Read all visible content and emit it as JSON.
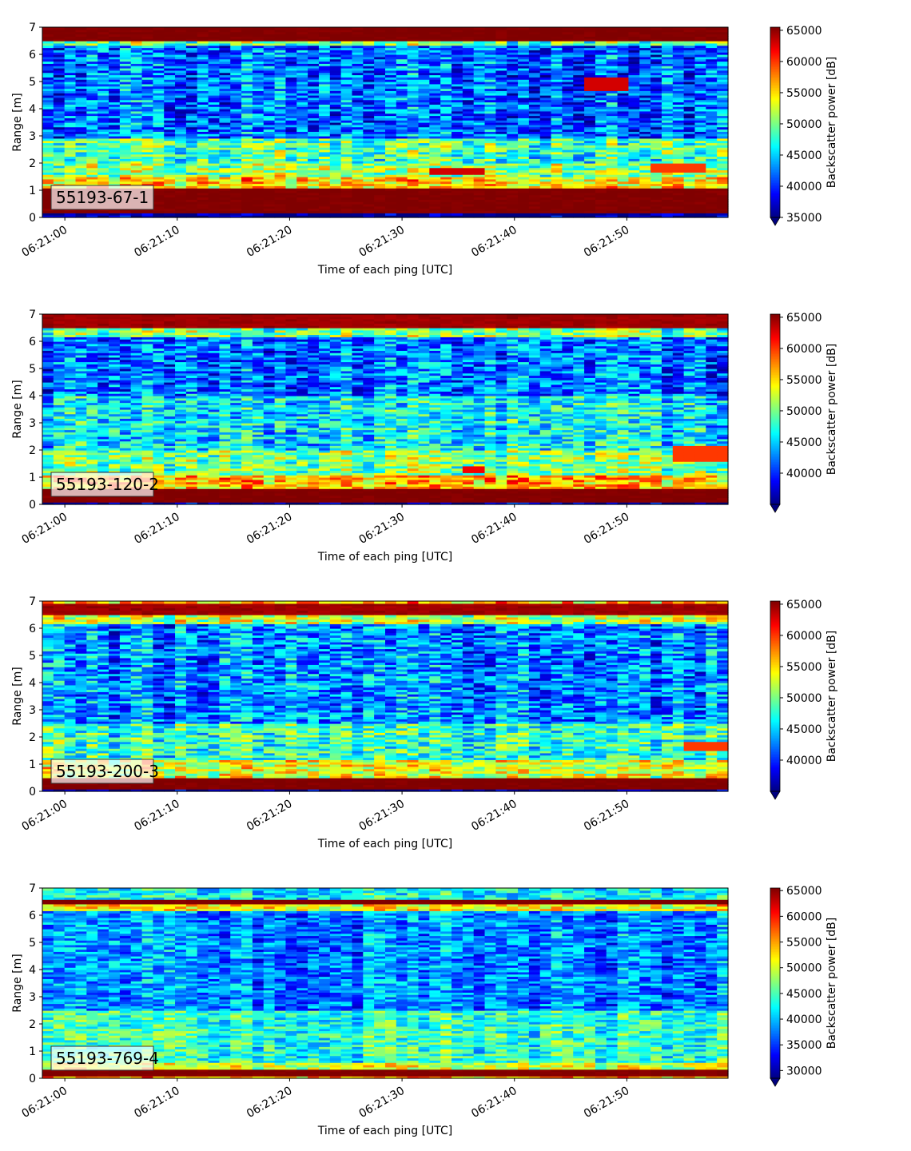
{
  "chart_data": [
    {
      "type": "heatmap",
      "panel_label": "55193-67-1",
      "xlabel": "Time of each ping [UTC]",
      "ylabel": "Range [m]",
      "x_ticks": [
        "06:21:00",
        "06:21:10",
        "06:21:20",
        "06:21:30",
        "06:21:40",
        "06:21:50"
      ],
      "y_ticks": [
        0,
        1,
        2,
        3,
        4,
        5,
        6,
        7
      ],
      "ylim": [
        0,
        7
      ],
      "time_range_s": [
        -2,
        59
      ],
      "colorbar_label": "Backscatter power [dB]",
      "colorbar_ticks": [
        35000,
        40000,
        45000,
        50000,
        55000,
        60000,
        65000
      ],
      "colorbar_range": [
        35000,
        65500
      ],
      "colormap": "jet",
      "colorbar_extend": "min",
      "bands": [
        {
          "range_m": [
            0.2,
            1.1
          ],
          "level": 65000
        },
        {
          "range_m": [
            1.1,
            1.5
          ],
          "level": 55000
        },
        {
          "range_m": [
            1.5,
            2.0
          ],
          "level": 51000
        },
        {
          "range_m": [
            2.0,
            2.4
          ],
          "level": 48000
        },
        {
          "range_m": [
            2.4,
            2.9
          ],
          "level": 49000
        },
        {
          "range_m": [
            2.9,
            6.3
          ],
          "level": 42000
        },
        {
          "range_m": [
            6.3,
            6.5
          ],
          "level": 50000
        },
        {
          "range_m": [
            6.5,
            7.0
          ],
          "level": 65000
        }
      ],
      "features": [
        {
          "time_s": [
            32,
            37
          ],
          "range_m": [
            1.6,
            1.8
          ],
          "level": 63000
        },
        {
          "time_s": [
            46,
            50
          ],
          "range_m": [
            4.7,
            5.2
          ],
          "level": 63000
        },
        {
          "time_s": [
            52,
            57
          ],
          "range_m": [
            1.7,
            2.0
          ],
          "level": 60000
        }
      ]
    },
    {
      "type": "heatmap",
      "panel_label": "55193-120-2",
      "xlabel": "Time of each ping [UTC]",
      "ylabel": "Range [m]",
      "x_ticks": [
        "06:21:00",
        "06:21:10",
        "06:21:20",
        "06:21:30",
        "06:21:40",
        "06:21:50"
      ],
      "y_ticks": [
        0,
        1,
        2,
        3,
        4,
        5,
        6,
        7
      ],
      "ylim": [
        0,
        7
      ],
      "time_range_s": [
        -2,
        59
      ],
      "colorbar_label": "Backscatter power [dB]",
      "colorbar_ticks": [
        40000,
        45000,
        50000,
        55000,
        60000,
        65000
      ],
      "colorbar_range": [
        35000,
        65500
      ],
      "colormap": "jet",
      "colorbar_extend": "min",
      "bands": [
        {
          "range_m": [
            0.1,
            0.6
          ],
          "level": 65000
        },
        {
          "range_m": [
            0.6,
            1.1
          ],
          "level": 56000
        },
        {
          "range_m": [
            1.1,
            2.0
          ],
          "level": 50000
        },
        {
          "range_m": [
            2.0,
            4.0
          ],
          "level": 46000
        },
        {
          "range_m": [
            4.0,
            6.2
          ],
          "level": 42000
        },
        {
          "range_m": [
            6.2,
            6.5
          ],
          "level": 50000
        },
        {
          "range_m": [
            6.5,
            7.0
          ],
          "level": 64000
        }
      ],
      "features": [
        {
          "time_s": [
            35,
            37
          ],
          "range_m": [
            1.2,
            1.4
          ],
          "level": 62000
        },
        {
          "time_s": [
            54,
            59
          ],
          "range_m": [
            1.6,
            2.2
          ],
          "level": 60000
        }
      ]
    },
    {
      "type": "heatmap",
      "panel_label": "55193-200-3",
      "xlabel": "Time of each ping [UTC]",
      "ylabel": "Range [m]",
      "x_ticks": [
        "06:21:00",
        "06:21:10",
        "06:21:20",
        "06:21:30",
        "06:21:40",
        "06:21:50"
      ],
      "y_ticks": [
        0,
        1,
        2,
        3,
        4,
        5,
        6,
        7
      ],
      "ylim": [
        0,
        7
      ],
      "time_range_s": [
        -2,
        59
      ],
      "colorbar_label": "Backscatter power [dB]",
      "colorbar_ticks": [
        40000,
        45000,
        50000,
        55000,
        60000,
        65000
      ],
      "colorbar_range": [
        35000,
        65500
      ],
      "colormap": "jet",
      "colorbar_extend": "min",
      "bands": [
        {
          "range_m": [
            0.1,
            0.5
          ],
          "level": 65000
        },
        {
          "range_m": [
            0.5,
            1.2
          ],
          "level": 53000
        },
        {
          "range_m": [
            1.2,
            2.5
          ],
          "level": 48000
        },
        {
          "range_m": [
            2.5,
            6.2
          ],
          "level": 43000
        },
        {
          "range_m": [
            6.2,
            6.5
          ],
          "level": 52000
        },
        {
          "range_m": [
            6.5,
            6.9
          ],
          "level": 64000
        },
        {
          "range_m": [
            6.9,
            7.0
          ],
          "level": 56000
        }
      ],
      "features": [
        {
          "time_s": [
            55,
            59
          ],
          "range_m": [
            1.5,
            1.8
          ],
          "level": 60000
        }
      ]
    },
    {
      "type": "heatmap",
      "panel_label": "55193-769-4",
      "xlabel": "Time of each ping [UTC]",
      "ylabel": "Range [m]",
      "x_ticks": [
        "06:21:00",
        "06:21:10",
        "06:21:20",
        "06:21:30",
        "06:21:40",
        "06:21:50"
      ],
      "y_ticks": [
        0,
        1,
        2,
        3,
        4,
        5,
        6,
        7
      ],
      "ylim": [
        0,
        7
      ],
      "time_range_s": [
        -2,
        59
      ],
      "colorbar_label": "Backscatter power [dB]",
      "colorbar_ticks": [
        30000,
        35000,
        40000,
        45000,
        50000,
        55000,
        60000,
        65000
      ],
      "colorbar_range": [
        28500,
        65500
      ],
      "colormap": "jet",
      "colorbar_extend": "min",
      "bands": [
        {
          "range_m": [
            0.0,
            0.1
          ],
          "level": 55000
        },
        {
          "range_m": [
            0.1,
            0.3
          ],
          "level": 65000
        },
        {
          "range_m": [
            0.3,
            0.6
          ],
          "level": 50000
        },
        {
          "range_m": [
            0.6,
            2.5
          ],
          "level": 44000
        },
        {
          "range_m": [
            2.5,
            6.2
          ],
          "level": 38000
        },
        {
          "range_m": [
            6.2,
            6.4
          ],
          "level": 52000
        },
        {
          "range_m": [
            6.4,
            6.6
          ],
          "level": 65000
        },
        {
          "range_m": [
            6.6,
            7.0
          ],
          "level": 42000
        }
      ],
      "features": []
    }
  ]
}
